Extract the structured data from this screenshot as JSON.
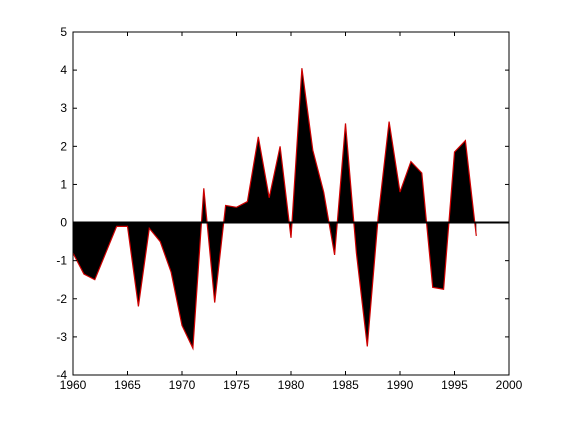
{
  "chart_data": {
    "type": "area",
    "title": "",
    "xlabel": "",
    "ylabel": "",
    "xlim": [
      1960,
      2000
    ],
    "ylim": [
      -4,
      5
    ],
    "xticks": [
      1960,
      1965,
      1970,
      1975,
      1980,
      1985,
      1990,
      1995,
      2000
    ],
    "yticks": [
      -4,
      -3,
      -2,
      -1,
      0,
      1,
      2,
      3,
      4,
      5
    ],
    "grid": false,
    "legend": "none",
    "fill_color": "#000000",
    "line_color": "#cc0000",
    "zero_line_color": "#000000",
    "series": [
      {
        "x": [
          1960,
          1961,
          1962,
          1963,
          1964,
          1965,
          1966,
          1967,
          1968,
          1969,
          1970,
          1971,
          1972,
          1973,
          1974,
          1975,
          1976,
          1977,
          1978,
          1979,
          1980,
          1981,
          1982,
          1983,
          1984,
          1985,
          1986,
          1987,
          1988,
          1989,
          1990,
          1991,
          1992,
          1993,
          1994,
          1995,
          1996,
          1997
        ],
        "values": [
          -0.8,
          -1.35,
          -1.5,
          -0.8,
          -0.1,
          -0.1,
          -2.2,
          -0.15,
          -0.5,
          -1.3,
          -2.7,
          -3.3,
          0.9,
          -2.1,
          0.45,
          0.4,
          0.55,
          2.25,
          0.65,
          2.0,
          -0.4,
          4.05,
          1.9,
          0.8,
          -0.85,
          2.6,
          -0.8,
          -3.25,
          0.15,
          2.65,
          0.8,
          1.6,
          1.3,
          -1.7,
          -1.75,
          1.85,
          2.15,
          -0.35
        ]
      }
    ]
  }
}
